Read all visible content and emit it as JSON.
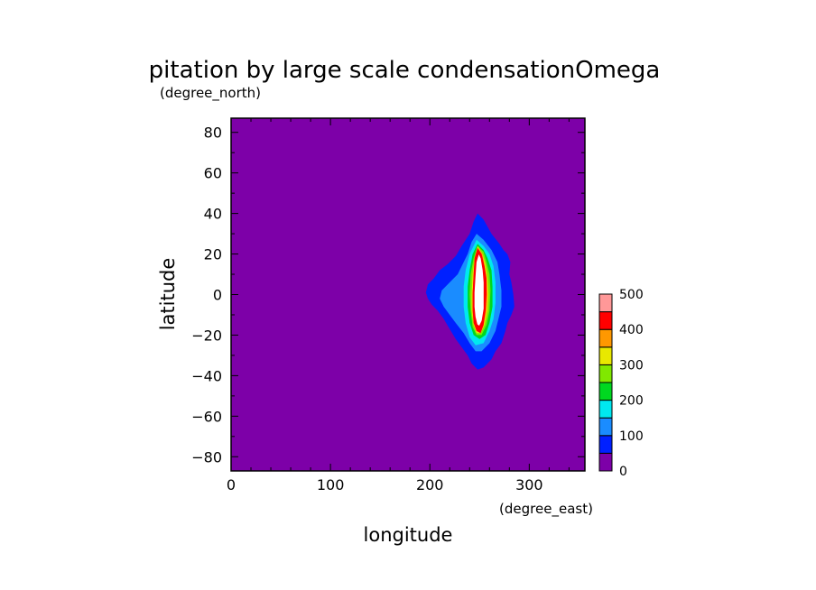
{
  "chart_data": {
    "type": "heatmap",
    "title": "pitation by large scale condensationOmega",
    "xlabel": "longitude",
    "ylabel": "latitude",
    "xunits": "(degree_east)",
    "yunits": "(degree_north)",
    "xlim": [
      0,
      356
    ],
    "ylim": [
      -87,
      87
    ],
    "xticks": [
      0,
      100,
      200,
      300
    ],
    "yticks": [
      -80,
      -60,
      -40,
      -20,
      0,
      20,
      40,
      60,
      80
    ],
    "grid": false,
    "background_value_range": [
      0,
      50
    ],
    "background_color": "#7d00a8",
    "colorbar": {
      "levels": [
        0,
        50,
        100,
        150,
        200,
        250,
        300,
        350,
        400,
        450,
        500
      ],
      "tick_labels": [
        "0",
        "100",
        "200",
        "300",
        "400",
        "500"
      ],
      "colors": [
        "#7d00a8",
        "#0020ff",
        "#1a8cff",
        "#00e8f0",
        "#00d820",
        "#80e800",
        "#e8e800",
        "#ff9800",
        "#ff0000",
        "#ff9898"
      ]
    },
    "contours": [
      {
        "level": 50,
        "color": "#0020ff",
        "points": [
          [
            248,
            40
          ],
          [
            254,
            37
          ],
          [
            262,
            30
          ],
          [
            270,
            25
          ],
          [
            274,
            22
          ],
          [
            278,
            20
          ],
          [
            281,
            16
          ],
          [
            280,
            10
          ],
          [
            282,
            6
          ],
          [
            284,
            0
          ],
          [
            285,
            -6
          ],
          [
            282,
            -10
          ],
          [
            278,
            -14
          ],
          [
            276,
            -18
          ],
          [
            272,
            -24
          ],
          [
            266,
            -28
          ],
          [
            262,
            -32
          ],
          [
            254,
            -36
          ],
          [
            248,
            -37
          ],
          [
            242,
            -34
          ],
          [
            238,
            -30
          ],
          [
            232,
            -26
          ],
          [
            226,
            -22
          ],
          [
            220,
            -17
          ],
          [
            214,
            -12
          ],
          [
            208,
            -8
          ],
          [
            202,
            -5
          ],
          [
            198,
            -2
          ],
          [
            196,
            1
          ],
          [
            198,
            5
          ],
          [
            204,
            8
          ],
          [
            210,
            12
          ],
          [
            218,
            15
          ],
          [
            226,
            19
          ],
          [
            232,
            24
          ],
          [
            240,
            30
          ],
          [
            244,
            36
          ]
        ]
      },
      {
        "level": 100,
        "color": "#1a8cff",
        "points": [
          [
            247,
            30
          ],
          [
            254,
            27
          ],
          [
            262,
            22
          ],
          [
            268,
            16
          ],
          [
            270,
            10
          ],
          [
            272,
            2
          ],
          [
            272,
            -6
          ],
          [
            269,
            -12
          ],
          [
            266,
            -18
          ],
          [
            260,
            -24
          ],
          [
            252,
            -28
          ],
          [
            246,
            -28
          ],
          [
            240,
            -24
          ],
          [
            234,
            -19
          ],
          [
            226,
            -14
          ],
          [
            220,
            -10
          ],
          [
            214,
            -6
          ],
          [
            210,
            -2
          ],
          [
            212,
            2
          ],
          [
            220,
            6
          ],
          [
            228,
            10
          ],
          [
            232,
            14
          ],
          [
            238,
            20
          ],
          [
            242,
            26
          ]
        ]
      },
      {
        "level": 150,
        "color": "#00e8f0",
        "points": [
          [
            247,
            27
          ],
          [
            254,
            24
          ],
          [
            260,
            20
          ],
          [
            264,
            14
          ],
          [
            266,
            6
          ],
          [
            266,
            -4
          ],
          [
            264,
            -12
          ],
          [
            260,
            -18
          ],
          [
            254,
            -24
          ],
          [
            246,
            -25
          ],
          [
            240,
            -21
          ],
          [
            236,
            -14
          ],
          [
            234,
            -6
          ],
          [
            234,
            4
          ],
          [
            236,
            12
          ],
          [
            240,
            20
          ]
        ]
      },
      {
        "level": 200,
        "color": "#00d820",
        "points": [
          [
            248,
            25
          ],
          [
            254,
            22
          ],
          [
            258,
            18
          ],
          [
            262,
            12
          ],
          [
            263,
            4
          ],
          [
            263,
            -6
          ],
          [
            260,
            -14
          ],
          [
            256,
            -20
          ],
          [
            250,
            -22
          ],
          [
            244,
            -20
          ],
          [
            240,
            -14
          ],
          [
            238,
            -6
          ],
          [
            238,
            4
          ],
          [
            240,
            12
          ],
          [
            243,
            20
          ]
        ]
      },
      {
        "level": 250,
        "color": "#80e800",
        "points": [
          [
            248,
            24
          ],
          [
            254,
            21
          ],
          [
            257,
            16
          ],
          [
            260,
            10
          ],
          [
            261,
            2
          ],
          [
            260,
            -8
          ],
          [
            257,
            -15
          ],
          [
            252,
            -20
          ],
          [
            247,
            -20
          ],
          [
            243,
            -16
          ],
          [
            241,
            -8
          ],
          [
            240,
            0
          ],
          [
            241,
            10
          ],
          [
            244,
            18
          ]
        ]
      },
      {
        "level": 300,
        "color": "#e8e800",
        "points": [
          [
            248,
            24
          ],
          [
            253,
            20
          ],
          [
            256,
            15
          ],
          [
            258,
            8
          ],
          [
            259,
            0
          ],
          [
            258,
            -8
          ],
          [
            255,
            -15
          ],
          [
            251,
            -19
          ],
          [
            247,
            -19
          ],
          [
            244,
            -15
          ],
          [
            242,
            -8
          ],
          [
            242,
            0
          ],
          [
            243,
            10
          ],
          [
            245,
            18
          ]
        ]
      },
      {
        "level": 350,
        "color": "#ff9800",
        "points": [
          [
            248,
            23
          ],
          [
            253,
            20
          ],
          [
            255,
            14
          ],
          [
            257,
            8
          ],
          [
            258,
            0
          ],
          [
            257,
            -8
          ],
          [
            254,
            -15
          ],
          [
            251,
            -19
          ],
          [
            247,
            -18
          ],
          [
            244,
            -14
          ],
          [
            243,
            -8
          ],
          [
            243,
            0
          ],
          [
            244,
            10
          ],
          [
            245,
            18
          ]
        ]
      },
      {
        "level": 400,
        "color": "#ff0000",
        "points": [
          [
            248,
            23
          ],
          [
            252,
            20
          ],
          [
            255,
            14
          ],
          [
            257,
            8
          ],
          [
            257,
            0
          ],
          [
            256,
            -8
          ],
          [
            254,
            -15
          ],
          [
            251,
            -19
          ],
          [
            247,
            -18
          ],
          [
            244,
            -14
          ],
          [
            243,
            -8
          ],
          [
            243,
            0
          ],
          [
            244,
            10
          ],
          [
            245,
            18
          ]
        ]
      },
      {
        "level": 450,
        "color": "#ffffff",
        "points": [
          [
            249,
            21
          ],
          [
            252,
            18
          ],
          [
            254,
            12
          ],
          [
            255,
            6
          ],
          [
            255,
            0
          ],
          [
            255,
            -7
          ],
          [
            253,
            -13
          ],
          [
            250,
            -16
          ],
          [
            247,
            -15
          ],
          [
            245,
            -11
          ],
          [
            244,
            -6
          ],
          [
            244,
            1
          ],
          [
            245,
            9
          ],
          [
            246,
            16
          ]
        ]
      }
    ]
  }
}
